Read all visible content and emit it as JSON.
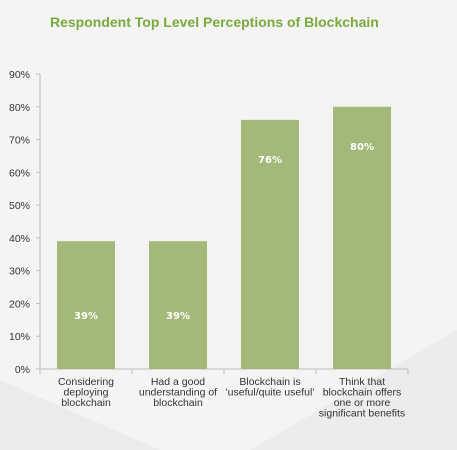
{
  "chart_data": {
    "type": "bar",
    "title": "Respondent Top Level Perceptions of Blockchain",
    "categories": [
      [
        "Considering",
        "deploying",
        "blockchain"
      ],
      [
        "Had a good",
        "understanding of",
        "blockchain"
      ],
      [
        "Blockchain is",
        "'useful/quite useful'"
      ],
      [
        "Think that",
        "blockchain offers",
        "one or more",
        "significant benefits"
      ]
    ],
    "values": [
      39,
      39,
      76,
      80
    ],
    "data_labels": [
      "39%",
      "39%",
      "76%",
      "80%"
    ],
    "ylim": [
      0,
      90
    ],
    "yticks": [
      0,
      10,
      20,
      30,
      40,
      50,
      60,
      70,
      80,
      90
    ],
    "ytick_labels": [
      "0%",
      "10%",
      "20%",
      "30%",
      "40%",
      "50%",
      "60%",
      "70%",
      "80%",
      "90%"
    ],
    "grid": false,
    "colors": {
      "bar": "#a3b97a",
      "title": "#79aa3b",
      "axis": "#bdbdbd"
    }
  }
}
